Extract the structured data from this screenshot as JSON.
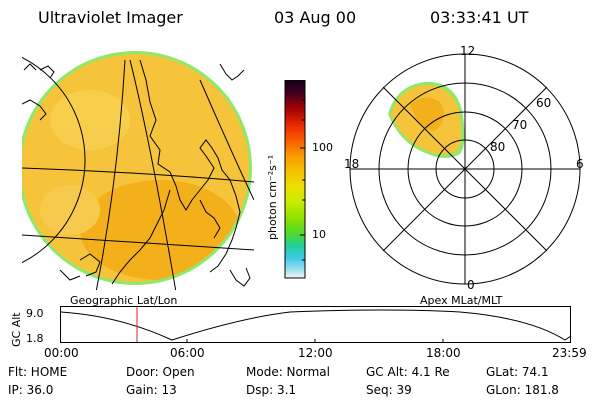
{
  "header": {
    "instrument": "Ultraviolet Imager",
    "date": "03 Aug 00",
    "time": "03:33:41 UT"
  },
  "geo_panel": {
    "label": "Geographic Lat/Lon",
    "fill_color": "#f6c43a",
    "edge_color": "#8ee86a"
  },
  "polar_panel": {
    "label": "Apex MLat/MLT",
    "mlt_labels": [
      "12",
      "18",
      "6",
      "0"
    ],
    "mlat_labels": [
      "60",
      "70",
      "80"
    ]
  },
  "colorbar": {
    "unit": "photon cm⁻²s⁻¹",
    "ticks": [
      "100",
      "10"
    ],
    "colors": [
      "#140018",
      "#3a0020",
      "#6e0010",
      "#a00008",
      "#d20000",
      "#ee3000",
      "#f86800",
      "#fa9a00",
      "#f6c000",
      "#eee000",
      "#c8ec00",
      "#8ee000",
      "#4ed830",
      "#20d0a0",
      "#40c8e8",
      "#90dcf0",
      "#d0ecf4",
      "#f4f4f4"
    ]
  },
  "altitude_plot": {
    "y_axis_label": "GC Alt",
    "y_ticks": [
      "9.0",
      "1.8"
    ],
    "x_ticks": [
      "00:00",
      "06:00",
      "12:00",
      "18:00",
      "23:59"
    ],
    "cursor_color": "#e02020"
  },
  "info": {
    "flt": "Flt: HOME",
    "door": "Door: Open",
    "mode": "Mode: Normal",
    "gc_alt": "GC Alt: 4.1 Re",
    "glat": "GLat:  74.1",
    "ip": "IP: 36.0",
    "gain": "Gain: 13",
    "dsp": "Dsp:     3.1",
    "seq": "Seq: 39",
    "glon": "GLon: 181.8"
  }
}
